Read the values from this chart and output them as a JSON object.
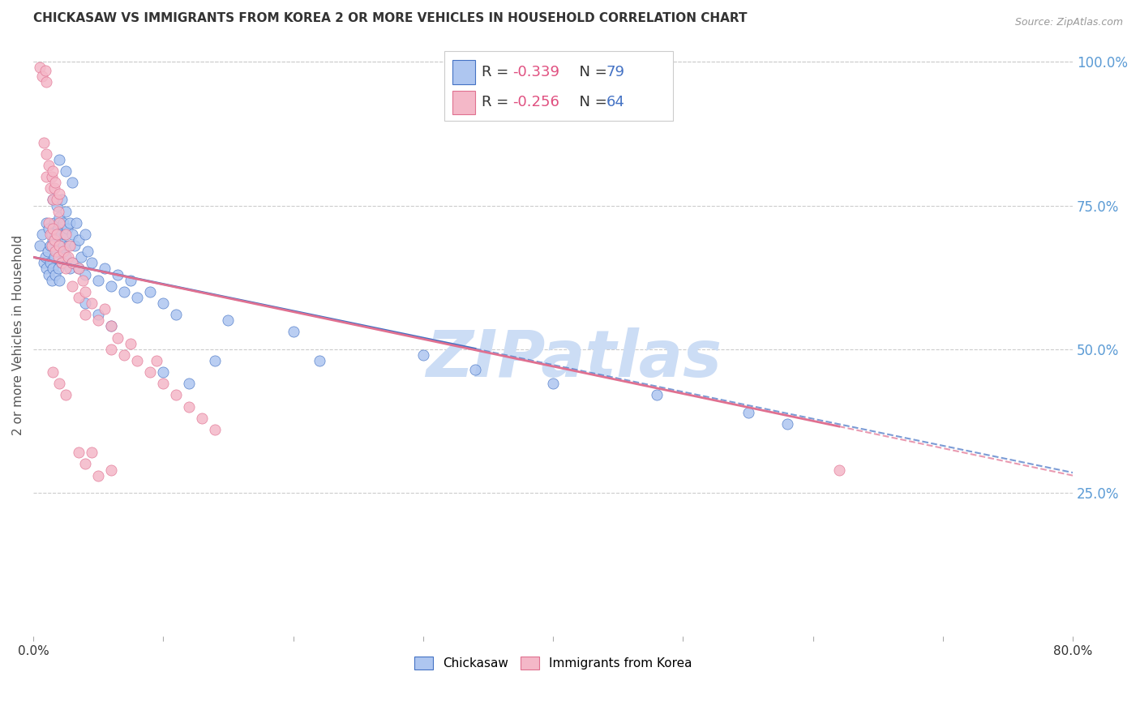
{
  "title": "CHICKASAW VS IMMIGRANTS FROM KOREA 2 OR MORE VEHICLES IN HOUSEHOLD CORRELATION CHART",
  "source": "Source: ZipAtlas.com",
  "ylabel": "2 or more Vehicles in Household",
  "ytick_labels": [
    "100.0%",
    "75.0%",
    "50.0%",
    "25.0%"
  ],
  "ytick_values": [
    1.0,
    0.75,
    0.5,
    0.25
  ],
  "legend_label1": "Chickasaw",
  "legend_label2": "Immigrants from Korea",
  "R1": -0.339,
  "N1": 79,
  "R2": -0.256,
  "N2": 64,
  "color1": "#aec6f0",
  "color2": "#f4b8c8",
  "line1_color": "#4472c4",
  "line2_color": "#e07090",
  "watermark": "ZIPatlas",
  "watermark_color": "#ccddf5",
  "blue_scatter": [
    [
      0.005,
      0.68
    ],
    [
      0.007,
      0.7
    ],
    [
      0.008,
      0.65
    ],
    [
      0.009,
      0.66
    ],
    [
      0.01,
      0.72
    ],
    [
      0.01,
      0.64
    ],
    [
      0.011,
      0.67
    ],
    [
      0.012,
      0.71
    ],
    [
      0.012,
      0.63
    ],
    [
      0.013,
      0.68
    ],
    [
      0.013,
      0.65
    ],
    [
      0.014,
      0.7
    ],
    [
      0.014,
      0.62
    ],
    [
      0.015,
      0.76
    ],
    [
      0.015,
      0.69
    ],
    [
      0.015,
      0.64
    ],
    [
      0.016,
      0.72
    ],
    [
      0.016,
      0.66
    ],
    [
      0.017,
      0.7
    ],
    [
      0.017,
      0.63
    ],
    [
      0.018,
      0.75
    ],
    [
      0.018,
      0.67
    ],
    [
      0.019,
      0.71
    ],
    [
      0.019,
      0.64
    ],
    [
      0.02,
      0.73
    ],
    [
      0.02,
      0.68
    ],
    [
      0.02,
      0.62
    ],
    [
      0.021,
      0.7
    ],
    [
      0.022,
      0.76
    ],
    [
      0.022,
      0.65
    ],
    [
      0.023,
      0.72
    ],
    [
      0.023,
      0.68
    ],
    [
      0.024,
      0.7
    ],
    [
      0.025,
      0.74
    ],
    [
      0.025,
      0.66
    ],
    [
      0.026,
      0.71
    ],
    [
      0.027,
      0.68
    ],
    [
      0.028,
      0.72
    ],
    [
      0.028,
      0.64
    ],
    [
      0.03,
      0.7
    ],
    [
      0.03,
      0.65
    ],
    [
      0.032,
      0.68
    ],
    [
      0.033,
      0.72
    ],
    [
      0.035,
      0.69
    ],
    [
      0.035,
      0.64
    ],
    [
      0.037,
      0.66
    ],
    [
      0.04,
      0.7
    ],
    [
      0.04,
      0.63
    ],
    [
      0.042,
      0.67
    ],
    [
      0.045,
      0.65
    ],
    [
      0.05,
      0.62
    ],
    [
      0.055,
      0.64
    ],
    [
      0.06,
      0.61
    ],
    [
      0.065,
      0.63
    ],
    [
      0.07,
      0.6
    ],
    [
      0.075,
      0.62
    ],
    [
      0.08,
      0.59
    ],
    [
      0.09,
      0.6
    ],
    [
      0.1,
      0.58
    ],
    [
      0.11,
      0.56
    ],
    [
      0.02,
      0.83
    ],
    [
      0.025,
      0.81
    ],
    [
      0.03,
      0.79
    ],
    [
      0.04,
      0.58
    ],
    [
      0.05,
      0.56
    ],
    [
      0.06,
      0.54
    ],
    [
      0.15,
      0.55
    ],
    [
      0.2,
      0.53
    ],
    [
      0.22,
      0.48
    ],
    [
      0.3,
      0.49
    ],
    [
      0.34,
      0.465
    ],
    [
      0.4,
      0.44
    ],
    [
      0.48,
      0.42
    ],
    [
      0.55,
      0.39
    ],
    [
      0.58,
      0.37
    ],
    [
      0.1,
      0.46
    ],
    [
      0.12,
      0.44
    ],
    [
      0.14,
      0.48
    ]
  ],
  "pink_scatter": [
    [
      0.005,
      0.99
    ],
    [
      0.007,
      0.975
    ],
    [
      0.009,
      0.985
    ],
    [
      0.01,
      0.965
    ],
    [
      0.008,
      0.86
    ],
    [
      0.01,
      0.84
    ],
    [
      0.01,
      0.8
    ],
    [
      0.012,
      0.82
    ],
    [
      0.013,
      0.78
    ],
    [
      0.014,
      0.8
    ],
    [
      0.015,
      0.81
    ],
    [
      0.015,
      0.76
    ],
    [
      0.016,
      0.78
    ],
    [
      0.017,
      0.79
    ],
    [
      0.018,
      0.76
    ],
    [
      0.019,
      0.74
    ],
    [
      0.02,
      0.77
    ],
    [
      0.02,
      0.72
    ],
    [
      0.012,
      0.72
    ],
    [
      0.013,
      0.7
    ],
    [
      0.014,
      0.68
    ],
    [
      0.015,
      0.71
    ],
    [
      0.016,
      0.69
    ],
    [
      0.017,
      0.67
    ],
    [
      0.018,
      0.7
    ],
    [
      0.019,
      0.66
    ],
    [
      0.02,
      0.68
    ],
    [
      0.022,
      0.65
    ],
    [
      0.023,
      0.67
    ],
    [
      0.025,
      0.7
    ],
    [
      0.025,
      0.64
    ],
    [
      0.027,
      0.66
    ],
    [
      0.028,
      0.68
    ],
    [
      0.03,
      0.65
    ],
    [
      0.03,
      0.61
    ],
    [
      0.035,
      0.64
    ],
    [
      0.035,
      0.59
    ],
    [
      0.038,
      0.62
    ],
    [
      0.04,
      0.6
    ],
    [
      0.04,
      0.56
    ],
    [
      0.045,
      0.58
    ],
    [
      0.05,
      0.55
    ],
    [
      0.055,
      0.57
    ],
    [
      0.06,
      0.54
    ],
    [
      0.06,
      0.5
    ],
    [
      0.065,
      0.52
    ],
    [
      0.07,
      0.49
    ],
    [
      0.075,
      0.51
    ],
    [
      0.08,
      0.48
    ],
    [
      0.09,
      0.46
    ],
    [
      0.095,
      0.48
    ],
    [
      0.1,
      0.44
    ],
    [
      0.11,
      0.42
    ],
    [
      0.12,
      0.4
    ],
    [
      0.13,
      0.38
    ],
    [
      0.14,
      0.36
    ],
    [
      0.015,
      0.46
    ],
    [
      0.02,
      0.44
    ],
    [
      0.025,
      0.42
    ],
    [
      0.035,
      0.32
    ],
    [
      0.04,
      0.3
    ],
    [
      0.045,
      0.32
    ],
    [
      0.05,
      0.28
    ],
    [
      0.06,
      0.29
    ],
    [
      0.62,
      0.29
    ]
  ],
  "xmin": 0.0,
  "xmax": 0.8,
  "ymin": 0.0,
  "ymax": 1.05,
  "line1_x0": 0.0,
  "line1_y0": 0.66,
  "line1_x1": 0.8,
  "line1_y1": 0.285,
  "line2_x0": 0.0,
  "line2_y0": 0.66,
  "line2_x1": 0.8,
  "line2_y1": 0.28,
  "line1_solid_end": 0.34,
  "line2_solid_end": 0.62
}
